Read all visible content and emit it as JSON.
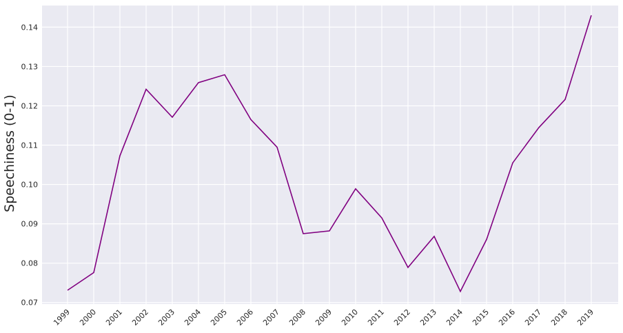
{
  "chart_data": {
    "type": "line",
    "title": "",
    "xlabel": "",
    "ylabel": "Speechiness (0-1)",
    "x": [
      "1999",
      "2000",
      "2001",
      "2002",
      "2003",
      "2004",
      "2005",
      "2006",
      "2007",
      "2008",
      "2009",
      "2010",
      "2011",
      "2012",
      "2013",
      "2014",
      "2015",
      "2016",
      "2017",
      "2018",
      "2019"
    ],
    "series": [
      {
        "name": "",
        "values": [
          0.0731,
          0.0776,
          0.1073,
          0.1242,
          0.1171,
          0.1259,
          0.1279,
          0.1165,
          0.1095,
          0.0875,
          0.0882,
          0.0989,
          0.0915,
          0.0789,
          0.0868,
          0.0728,
          0.086,
          0.1055,
          0.1145,
          0.1216,
          0.143
        ]
      }
    ],
    "yticks": [
      "0.07",
      "0.08",
      "0.09",
      "0.10",
      "0.11",
      "0.12",
      "0.13",
      "0.14"
    ],
    "ylim": [
      0.0696,
      0.1455
    ],
    "grid": true,
    "colors": {
      "line": "#800080",
      "background": "#eaeaf2",
      "grid": "#ffffff"
    }
  }
}
